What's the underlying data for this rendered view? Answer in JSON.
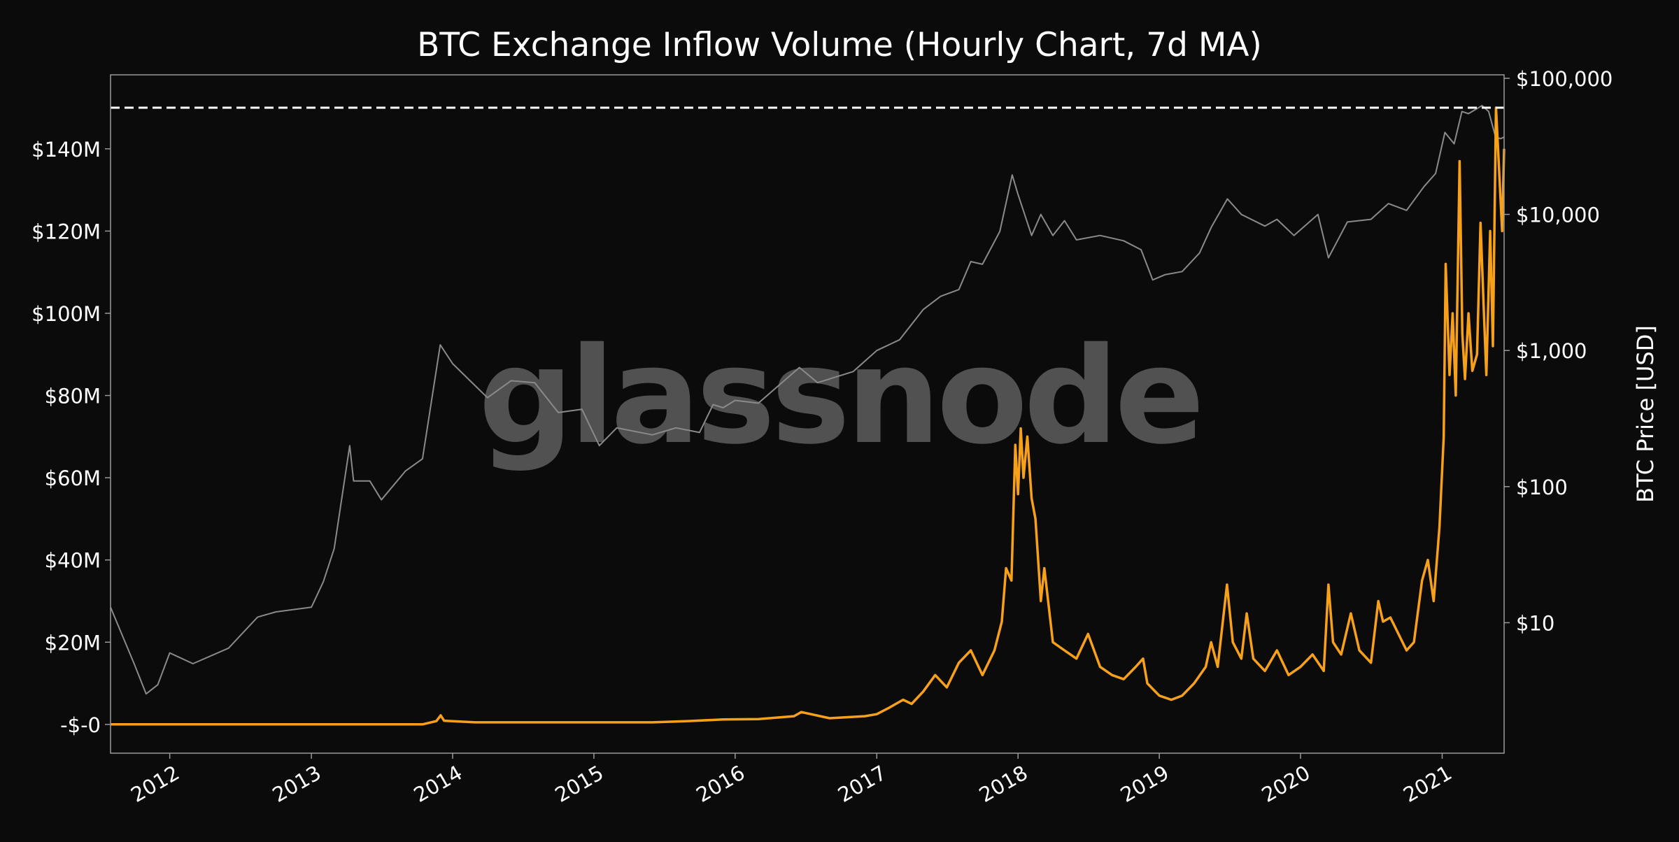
{
  "watermark": "glassnode",
  "colors": {
    "background": "#0b0b0b",
    "inflow": "#f7a11a",
    "price": "#8a8a8a",
    "text": "#ffffff",
    "frame": "#9a9a9a",
    "ath_line": "#ffffff"
  },
  "chart_data": {
    "type": "line",
    "title": "BTC Exchange Inflow Volume (Hourly Chart, 7d MA)",
    "grid": false,
    "x_axis": {
      "type": "date",
      "range": [
        "2011-08-01",
        "2021-06-10"
      ],
      "tick_labels": [
        "2012",
        "2013",
        "2014",
        "2015",
        "2016",
        "2017",
        "2018",
        "2019",
        "2020",
        "2021"
      ],
      "tick_dates": [
        "2012-01-01",
        "2013-01-01",
        "2014-01-01",
        "2015-01-01",
        "2016-01-01",
        "2017-01-01",
        "2018-01-01",
        "2019-01-01",
        "2020-01-01",
        "2021-01-01"
      ]
    },
    "y_left": {
      "label": "",
      "range": [
        -7000000,
        158000000
      ],
      "ticks": [
        0,
        20000000,
        40000000,
        60000000,
        80000000,
        100000000,
        120000000,
        140000000
      ],
      "tick_labels": [
        "-$-0",
        "$20M",
        "$40M",
        "$60M",
        "$80M",
        "$100M",
        "$120M",
        "$140M"
      ]
    },
    "y_right": {
      "label": "BTC Price [USD]",
      "scale": "log",
      "range": [
        1.1,
        106000
      ],
      "ticks": [
        10,
        100,
        1000,
        10000,
        100000
      ],
      "tick_labels": [
        "$10",
        "$100",
        "$1,000",
        "$10,000",
        "$100,000"
      ]
    },
    "reference_lines": [
      {
        "axis": "y_left",
        "value": 150000000,
        "style": "dashed"
      }
    ],
    "series": [
      {
        "axis": "y_left",
        "values_unit": "USD",
        "points": [
          [
            "2011-08-01",
            0
          ],
          [
            "2013-10-15",
            0
          ],
          [
            "2013-11-20",
            800000
          ],
          [
            "2013-12-01",
            2200000
          ],
          [
            "2013-12-10",
            900000
          ],
          [
            "2014-03-01",
            500000
          ],
          [
            "2015-06-01",
            500000
          ],
          [
            "2015-09-01",
            800000
          ],
          [
            "2015-12-01",
            1200000
          ],
          [
            "2016-03-01",
            1300000
          ],
          [
            "2016-06-01",
            2000000
          ],
          [
            "2016-06-20",
            3000000
          ],
          [
            "2016-09-01",
            1500000
          ],
          [
            "2016-12-01",
            2000000
          ],
          [
            "2017-01-01",
            2500000
          ],
          [
            "2017-02-01",
            4000000
          ],
          [
            "2017-03-10",
            6000000
          ],
          [
            "2017-04-01",
            5000000
          ],
          [
            "2017-05-01",
            8000000
          ],
          [
            "2017-06-01",
            12000000
          ],
          [
            "2017-07-01",
            9000000
          ],
          [
            "2017-08-01",
            15000000
          ],
          [
            "2017-09-01",
            18000000
          ],
          [
            "2017-10-01",
            12000000
          ],
          [
            "2017-11-01",
            18000000
          ],
          [
            "2017-11-20",
            25000000
          ],
          [
            "2017-12-01",
            38000000
          ],
          [
            "2017-12-15",
            35000000
          ],
          [
            "2017-12-25",
            68000000
          ],
          [
            "2018-01-01",
            56000000
          ],
          [
            "2018-01-08",
            72000000
          ],
          [
            "2018-01-15",
            60000000
          ],
          [
            "2018-01-25",
            70000000
          ],
          [
            "2018-02-05",
            55000000
          ],
          [
            "2018-02-15",
            50000000
          ],
          [
            "2018-03-01",
            30000000
          ],
          [
            "2018-03-10",
            38000000
          ],
          [
            "2018-04-01",
            20000000
          ],
          [
            "2018-05-01",
            18000000
          ],
          [
            "2018-06-01",
            16000000
          ],
          [
            "2018-07-01",
            22000000
          ],
          [
            "2018-08-01",
            14000000
          ],
          [
            "2018-09-01",
            12000000
          ],
          [
            "2018-10-01",
            11000000
          ],
          [
            "2018-11-01",
            14000000
          ],
          [
            "2018-11-20",
            16000000
          ],
          [
            "2018-12-01",
            10000000
          ],
          [
            "2019-01-01",
            7000000
          ],
          [
            "2019-02-01",
            6000000
          ],
          [
            "2019-03-01",
            7000000
          ],
          [
            "2019-04-01",
            10000000
          ],
          [
            "2019-05-01",
            14000000
          ],
          [
            "2019-05-15",
            20000000
          ],
          [
            "2019-06-01",
            14000000
          ],
          [
            "2019-06-25",
            34000000
          ],
          [
            "2019-07-10",
            20000000
          ],
          [
            "2019-08-01",
            16000000
          ],
          [
            "2019-08-15",
            27000000
          ],
          [
            "2019-09-01",
            16000000
          ],
          [
            "2019-10-01",
            13000000
          ],
          [
            "2019-11-01",
            18000000
          ],
          [
            "2019-12-01",
            12000000
          ],
          [
            "2020-01-01",
            14000000
          ],
          [
            "2020-02-01",
            17000000
          ],
          [
            "2020-03-01",
            13000000
          ],
          [
            "2020-03-13",
            34000000
          ],
          [
            "2020-03-25",
            20000000
          ],
          [
            "2020-04-15",
            17000000
          ],
          [
            "2020-05-10",
            27000000
          ],
          [
            "2020-06-01",
            18000000
          ],
          [
            "2020-07-01",
            15000000
          ],
          [
            "2020-07-20",
            30000000
          ],
          [
            "2020-08-01",
            25000000
          ],
          [
            "2020-08-20",
            26000000
          ],
          [
            "2020-09-10",
            22000000
          ],
          [
            "2020-10-01",
            18000000
          ],
          [
            "2020-10-20",
            20000000
          ],
          [
            "2020-11-10",
            35000000
          ],
          [
            "2020-11-25",
            40000000
          ],
          [
            "2020-12-10",
            30000000
          ],
          [
            "2020-12-25",
            48000000
          ],
          [
            "2021-01-05",
            70000000
          ],
          [
            "2021-01-10",
            112000000
          ],
          [
            "2021-01-20",
            85000000
          ],
          [
            "2021-01-28",
            100000000
          ],
          [
            "2021-02-05",
            80000000
          ],
          [
            "2021-02-15",
            137000000
          ],
          [
            "2021-02-22",
            95000000
          ],
          [
            "2021-03-01",
            84000000
          ],
          [
            "2021-03-10",
            100000000
          ],
          [
            "2021-03-20",
            86000000
          ],
          [
            "2021-04-01",
            90000000
          ],
          [
            "2021-04-10",
            122000000
          ],
          [
            "2021-04-18",
            102000000
          ],
          [
            "2021-04-25",
            85000000
          ],
          [
            "2021-05-05",
            120000000
          ],
          [
            "2021-05-12",
            92000000
          ],
          [
            "2021-05-20",
            150000000
          ],
          [
            "2021-05-28",
            135000000
          ],
          [
            "2021-06-05",
            120000000
          ],
          [
            "2021-06-10",
            140000000
          ]
        ]
      },
      {
        "axis": "y_right",
        "values_unit": "USD",
        "points": [
          [
            "2011-08-01",
            13
          ],
          [
            "2011-09-01",
            8
          ],
          [
            "2011-10-01",
            5
          ],
          [
            "2011-11-01",
            3
          ],
          [
            "2011-12-01",
            3.5
          ],
          [
            "2012-01-01",
            6
          ],
          [
            "2012-03-01",
            5
          ],
          [
            "2012-06-01",
            6.5
          ],
          [
            "2012-08-15",
            11
          ],
          [
            "2012-10-01",
            12
          ],
          [
            "2013-01-01",
            13
          ],
          [
            "2013-02-01",
            20
          ],
          [
            "2013-03-01",
            35
          ],
          [
            "2013-04-10",
            200
          ],
          [
            "2013-04-20",
            110
          ],
          [
            "2013-06-01",
            110
          ],
          [
            "2013-07-01",
            80
          ],
          [
            "2013-09-01",
            130
          ],
          [
            "2013-10-15",
            160
          ],
          [
            "2013-11-30",
            1100
          ],
          [
            "2014-01-01",
            800
          ],
          [
            "2014-02-15",
            600
          ],
          [
            "2014-04-01",
            450
          ],
          [
            "2014-06-01",
            600
          ],
          [
            "2014-08-01",
            580
          ],
          [
            "2014-10-01",
            350
          ],
          [
            "2014-12-01",
            370
          ],
          [
            "2015-01-15",
            200
          ],
          [
            "2015-03-01",
            270
          ],
          [
            "2015-06-01",
            240
          ],
          [
            "2015-08-01",
            270
          ],
          [
            "2015-10-01",
            250
          ],
          [
            "2015-11-05",
            400
          ],
          [
            "2015-12-01",
            380
          ],
          [
            "2016-01-01",
            430
          ],
          [
            "2016-03-01",
            410
          ],
          [
            "2016-06-15",
            750
          ],
          [
            "2016-08-01",
            580
          ],
          [
            "2016-11-01",
            700
          ],
          [
            "2017-01-01",
            1000
          ],
          [
            "2017-03-01",
            1200
          ],
          [
            "2017-05-01",
            2000
          ],
          [
            "2017-06-15",
            2500
          ],
          [
            "2017-08-01",
            2800
          ],
          [
            "2017-09-01",
            4500
          ],
          [
            "2017-10-01",
            4300
          ],
          [
            "2017-11-15",
            7500
          ],
          [
            "2017-12-17",
            19500
          ],
          [
            "2018-01-01",
            14000
          ],
          [
            "2018-02-05",
            7000
          ],
          [
            "2018-03-01",
            10000
          ],
          [
            "2018-04-01",
            7000
          ],
          [
            "2018-05-01",
            9000
          ],
          [
            "2018-06-01",
            6500
          ],
          [
            "2018-08-01",
            7000
          ],
          [
            "2018-10-01",
            6400
          ],
          [
            "2018-11-15",
            5500
          ],
          [
            "2018-12-15",
            3300
          ],
          [
            "2019-01-15",
            3600
          ],
          [
            "2019-03-01",
            3800
          ],
          [
            "2019-04-15",
            5200
          ],
          [
            "2019-05-15",
            8000
          ],
          [
            "2019-06-26",
            13000
          ],
          [
            "2019-08-01",
            10000
          ],
          [
            "2019-10-01",
            8200
          ],
          [
            "2019-11-01",
            9200
          ],
          [
            "2019-12-15",
            7000
          ],
          [
            "2020-02-15",
            10000
          ],
          [
            "2020-03-13",
            4800
          ],
          [
            "2020-05-01",
            8800
          ],
          [
            "2020-07-01",
            9200
          ],
          [
            "2020-08-15",
            12000
          ],
          [
            "2020-10-01",
            10700
          ],
          [
            "2020-11-15",
            16000
          ],
          [
            "2020-12-15",
            20000
          ],
          [
            "2021-01-08",
            40000
          ],
          [
            "2021-02-01",
            33000
          ],
          [
            "2021-02-21",
            57000
          ],
          [
            "2021-03-10",
            55000
          ],
          [
            "2021-04-14",
            63000
          ],
          [
            "2021-05-01",
            57000
          ],
          [
            "2021-05-19",
            37000
          ],
          [
            "2021-06-01",
            36000
          ],
          [
            "2021-06-10",
            37000
          ]
        ]
      }
    ]
  }
}
